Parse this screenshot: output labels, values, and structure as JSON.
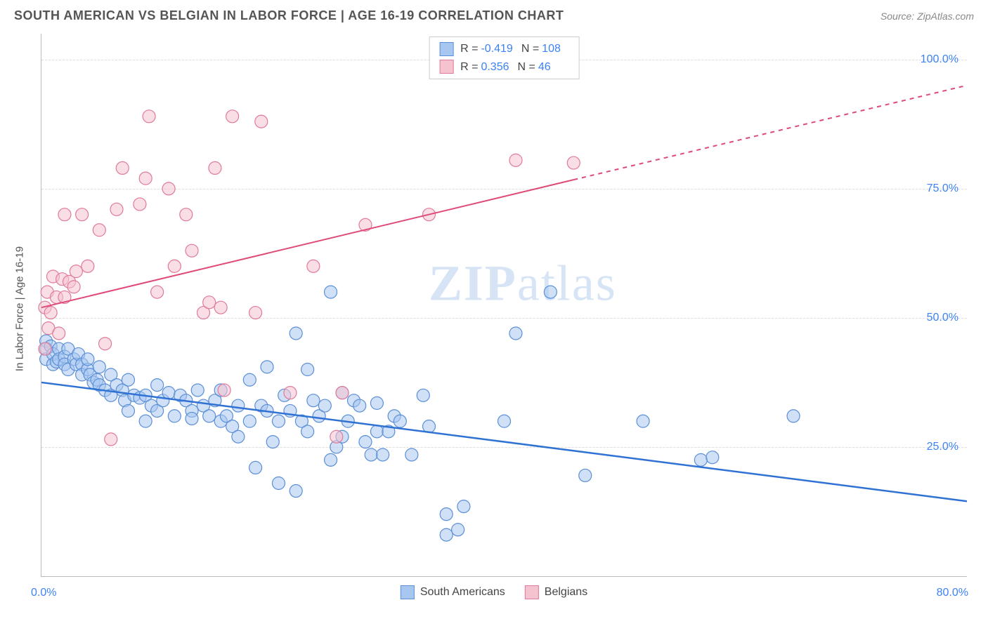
{
  "header": {
    "title": "SOUTH AMERICAN VS BELGIAN IN LABOR FORCE | AGE 16-19 CORRELATION CHART",
    "source": "Source: ZipAtlas.com"
  },
  "watermark": {
    "bold": "ZIP",
    "rest": "atlas"
  },
  "chart": {
    "type": "scatter",
    "ylabel": "In Labor Force | Age 16-19",
    "xlim": [
      0,
      80
    ],
    "ylim": [
      0,
      105
    ],
    "xticks": [
      {
        "value": 0,
        "label": "0.0%"
      },
      {
        "value": 80,
        "label": "80.0%"
      }
    ],
    "yticks": [
      {
        "value": 25,
        "label": "25.0%"
      },
      {
        "value": 50,
        "label": "50.0%"
      },
      {
        "value": 75,
        "label": "75.0%"
      },
      {
        "value": 100,
        "label": "100.0%"
      }
    ],
    "grid_color": "#dddddd",
    "background_color": "#ffffff",
    "marker_radius": 9,
    "marker_opacity": 0.55,
    "series": [
      {
        "name": "South Americans",
        "color_fill": "#a7c7f0",
        "color_stroke": "#5b8fd6",
        "trend_color": "#2f72d4",
        "trend_width": 2.5,
        "R": "-0.419",
        "N": "108",
        "trendline": {
          "x1": 0,
          "y1": 37.5,
          "x2": 80,
          "y2": 14.5
        },
        "trend_dash_from_x": null,
        "points": [
          [
            0.4,
            45.5
          ],
          [
            0.4,
            44
          ],
          [
            0.4,
            42
          ],
          [
            0.8,
            44.5
          ],
          [
            1,
            41
          ],
          [
            1,
            43
          ],
          [
            1.3,
            41.5
          ],
          [
            1.5,
            44
          ],
          [
            1.5,
            42
          ],
          [
            2,
            42.5
          ],
          [
            2,
            41
          ],
          [
            2.3,
            40
          ],
          [
            2.3,
            44
          ],
          [
            2.8,
            42
          ],
          [
            3,
            41
          ],
          [
            3.2,
            43
          ],
          [
            3.5,
            41
          ],
          [
            3.5,
            39
          ],
          [
            4,
            40
          ],
          [
            4,
            42
          ],
          [
            4.2,
            39
          ],
          [
            4.5,
            37.5
          ],
          [
            4.8,
            38
          ],
          [
            5,
            40.5
          ],
          [
            5,
            37
          ],
          [
            5.5,
            36
          ],
          [
            6,
            39
          ],
          [
            6,
            35
          ],
          [
            6.5,
            37
          ],
          [
            7,
            36
          ],
          [
            7.2,
            34
          ],
          [
            7.5,
            38
          ],
          [
            7.5,
            32
          ],
          [
            8,
            35
          ],
          [
            8.5,
            34.5
          ],
          [
            9,
            35
          ],
          [
            9,
            30
          ],
          [
            9.5,
            33
          ],
          [
            10,
            37
          ],
          [
            10,
            32
          ],
          [
            10.5,
            34
          ],
          [
            11,
            35.5
          ],
          [
            11.5,
            31
          ],
          [
            12,
            35
          ],
          [
            12.5,
            34
          ],
          [
            13,
            32
          ],
          [
            13,
            30.5
          ],
          [
            13.5,
            36
          ],
          [
            14,
            33
          ],
          [
            14.5,
            31
          ],
          [
            15,
            34
          ],
          [
            15.5,
            36
          ],
          [
            15.5,
            30
          ],
          [
            16,
            31
          ],
          [
            16.5,
            29
          ],
          [
            17,
            33
          ],
          [
            17,
            27
          ],
          [
            18,
            30
          ],
          [
            18,
            38
          ],
          [
            18.5,
            21
          ],
          [
            19,
            33
          ],
          [
            19.5,
            32
          ],
          [
            19.5,
            40.5
          ],
          [
            20,
            26
          ],
          [
            20.5,
            30
          ],
          [
            20.5,
            18
          ],
          [
            21,
            35
          ],
          [
            21.5,
            32
          ],
          [
            22,
            47
          ],
          [
            22,
            16.5
          ],
          [
            22.5,
            30
          ],
          [
            23,
            40
          ],
          [
            23,
            28
          ],
          [
            23.5,
            34
          ],
          [
            24,
            31
          ],
          [
            24.5,
            33
          ],
          [
            25,
            55
          ],
          [
            25,
            22.5
          ],
          [
            25.5,
            25
          ],
          [
            26,
            27
          ],
          [
            26,
            35.5
          ],
          [
            26.5,
            30
          ],
          [
            27,
            34
          ],
          [
            27.5,
            33
          ],
          [
            28,
            26
          ],
          [
            28.5,
            23.5
          ],
          [
            29,
            28
          ],
          [
            29,
            33.5
          ],
          [
            29.5,
            23.5
          ],
          [
            30,
            28
          ],
          [
            30.5,
            31
          ],
          [
            31,
            30
          ],
          [
            32,
            23.5
          ],
          [
            33,
            35
          ],
          [
            33.5,
            29
          ],
          [
            35,
            12
          ],
          [
            35,
            8
          ],
          [
            36,
            9
          ],
          [
            36.5,
            13.5
          ],
          [
            40,
            30
          ],
          [
            41,
            47
          ],
          [
            44,
            55
          ],
          [
            47,
            19.5
          ],
          [
            52,
            30
          ],
          [
            57,
            22.5
          ],
          [
            58,
            23
          ],
          [
            65,
            31
          ]
        ]
      },
      {
        "name": "Belgians",
        "color_fill": "#f5c2cf",
        "color_stroke": "#e07a9a",
        "trend_color": "#e04a77",
        "trend_width": 2,
        "R": "0.356",
        "N": "46",
        "trendline": {
          "x1": 0,
          "y1": 52,
          "x2": 80,
          "y2": 95
        },
        "trend_dash_from_x": 46,
        "points": [
          [
            0.3,
            52
          ],
          [
            0.3,
            44
          ],
          [
            0.5,
            55
          ],
          [
            0.6,
            48
          ],
          [
            0.8,
            51
          ],
          [
            1,
            58
          ],
          [
            1.3,
            54
          ],
          [
            1.5,
            47
          ],
          [
            1.8,
            57.5
          ],
          [
            2,
            70
          ],
          [
            2,
            54
          ],
          [
            2.4,
            57
          ],
          [
            2.8,
            56
          ],
          [
            3,
            59
          ],
          [
            3.5,
            70
          ],
          [
            4,
            60
          ],
          [
            5,
            67
          ],
          [
            5.5,
            45
          ],
          [
            6,
            26.5
          ],
          [
            6.5,
            71
          ],
          [
            7,
            79
          ],
          [
            8.5,
            72
          ],
          [
            9,
            77
          ],
          [
            9.3,
            89
          ],
          [
            10,
            55
          ],
          [
            11,
            75
          ],
          [
            11.5,
            60
          ],
          [
            12.5,
            70
          ],
          [
            13,
            63
          ],
          [
            14,
            51
          ],
          [
            14.5,
            53
          ],
          [
            15,
            79
          ],
          [
            15.5,
            52
          ],
          [
            15.8,
            36
          ],
          [
            16.5,
            89
          ],
          [
            18.5,
            51
          ],
          [
            19,
            88
          ],
          [
            21.5,
            35.5
          ],
          [
            23.5,
            60
          ],
          [
            25.5,
            27
          ],
          [
            26,
            35.5
          ],
          [
            28,
            68
          ],
          [
            33.5,
            70
          ],
          [
            41,
            80.5
          ],
          [
            45,
            103
          ],
          [
            46,
            80
          ]
        ]
      }
    ]
  },
  "legend_bottom": [
    {
      "label": "South Americans",
      "fill": "#a7c7f0",
      "stroke": "#5b8fd6"
    },
    {
      "label": "Belgians",
      "fill": "#f5c2cf",
      "stroke": "#e07a9a"
    }
  ]
}
